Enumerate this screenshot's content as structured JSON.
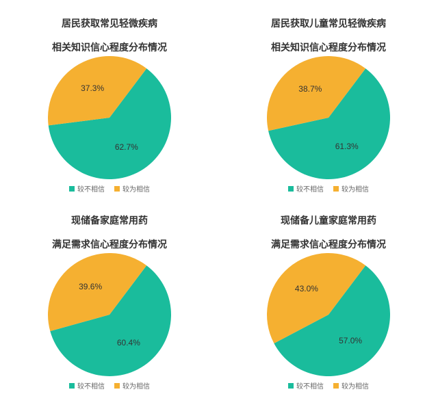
{
  "layout": {
    "rows": 2,
    "cols": 2,
    "background": "#ffffff",
    "pie_radius": 90,
    "title_fontsize": 14,
    "title_color": "#333333",
    "label_fontsize": 12,
    "label_color": "#333333",
    "legend_fontsize": 10,
    "legend_color": "#666666"
  },
  "series_colors": {
    "teal": "#1abc9c",
    "orange": "#f5b031"
  },
  "legend_labels": {
    "teal": "较不相信",
    "orange": "较为相信"
  },
  "legend_swatch_size": 8,
  "charts": [
    {
      "title_line1": "居民获取常见轻微疾病",
      "title_line2": "相关知识信心程度分布情况",
      "slices": [
        {
          "key": "teal",
          "value": 62.7,
          "label": "62.7%"
        },
        {
          "key": "orange",
          "value": 37.3,
          "label": "37.3%"
        }
      ],
      "start_angle_deg": 37
    },
    {
      "title_line1": "居民获取儿童常见轻微疾病",
      "title_line2": "相关知识信心程度分布情况",
      "slices": [
        {
          "key": "teal",
          "value": 61.3,
          "label": "61.3%"
        },
        {
          "key": "orange",
          "value": 38.7,
          "label": "38.7%"
        }
      ],
      "start_angle_deg": 37
    },
    {
      "title_line1": "现储备家庭常用药",
      "title_line2": "满足需求信心程度分布情况",
      "slices": [
        {
          "key": "teal",
          "value": 60.4,
          "label": "60.4%"
        },
        {
          "key": "orange",
          "value": 39.6,
          "label": "39.6%"
        }
      ],
      "start_angle_deg": 37
    },
    {
      "title_line1": "现储备儿童家庭常用药",
      "title_line2": "满足需求信心程度分布情况",
      "slices": [
        {
          "key": "teal",
          "value": 57.0,
          "label": "57.0%"
        },
        {
          "key": "orange",
          "value": 43.0,
          "label": "43.0%"
        }
      ],
      "start_angle_deg": 37
    }
  ]
}
